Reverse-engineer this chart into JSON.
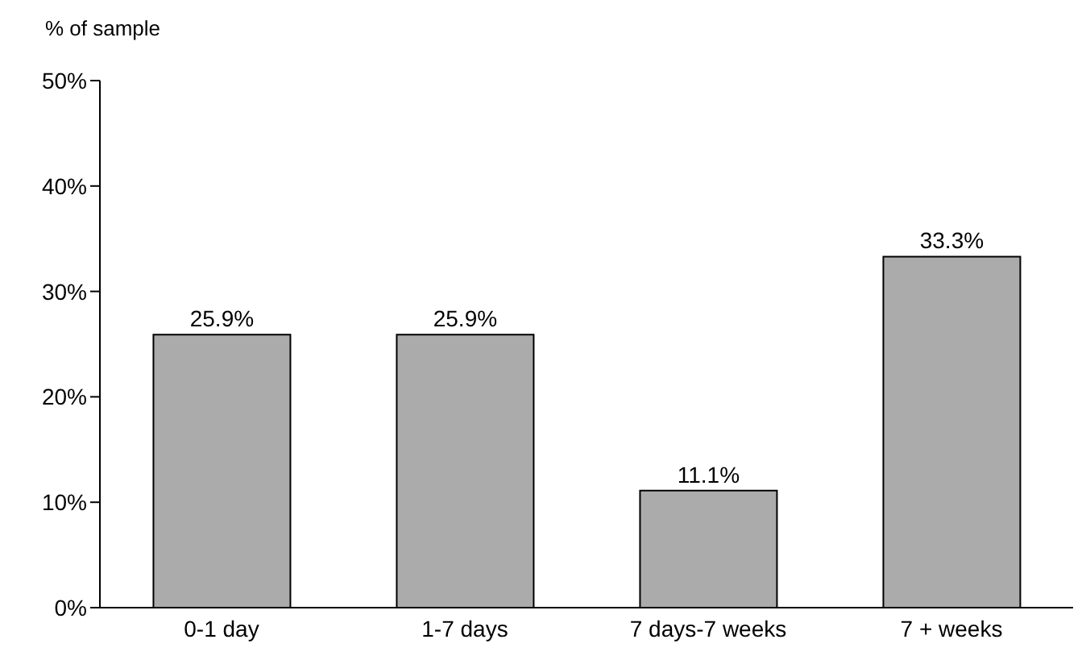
{
  "chart_data": {
    "type": "bar",
    "ylabel": "% of sample",
    "categories": [
      "0-1 day",
      "1-7 days",
      "7 days-7 weeks",
      "7 + weeks"
    ],
    "values": [
      25.9,
      25.9,
      11.1,
      33.3
    ],
    "value_labels": [
      "25.9%",
      "25.9%",
      "11.1%",
      "33.3%"
    ],
    "color": "#ababab",
    "ylim": [
      0,
      50
    ],
    "yticks": [
      {
        "value": 0,
        "label": "0%"
      },
      {
        "value": 10,
        "label": "10%"
      },
      {
        "value": 20,
        "label": "20%"
      },
      {
        "value": 30,
        "label": "30%"
      },
      {
        "value": 40,
        "label": "40%"
      },
      {
        "value": 50,
        "label": "50%"
      }
    ],
    "grid": false,
    "legend": false
  }
}
